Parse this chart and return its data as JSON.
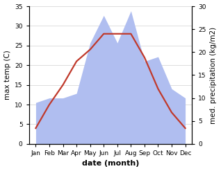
{
  "months": [
    "Jan",
    "Feb",
    "Mar",
    "Apr",
    "May",
    "Jun",
    "Jul",
    "Aug",
    "Sep",
    "Oct",
    "Nov",
    "Dec"
  ],
  "temperature": [
    4,
    10,
    15,
    21,
    24,
    28,
    28,
    28,
    22,
    14,
    8,
    4
  ],
  "precipitation": [
    9,
    10,
    10,
    11,
    22,
    28,
    22,
    29,
    18,
    19,
    12,
    10
  ],
  "temp_ylim": [
    0,
    35
  ],
  "precip_ylim": [
    0,
    30
  ],
  "temp_color": "#c0392b",
  "precip_fill_color": "#b0bef0",
  "precip_line_color": "#b0bef0",
  "xlabel": "date (month)",
  "ylabel_left": "max temp (C)",
  "ylabel_right": "med. precipitation (kg/m2)",
  "tick_fontsize": 6.5,
  "label_fontsize": 7.5,
  "xlabel_fontsize": 8,
  "temp_linewidth": 1.6,
  "background_color": "#ffffff",
  "grid_color": "#d0d0d0",
  "yticks_left": [
    0,
    5,
    10,
    15,
    20,
    25,
    30,
    35
  ],
  "yticks_right": [
    0,
    5,
    10,
    15,
    20,
    25,
    30
  ]
}
